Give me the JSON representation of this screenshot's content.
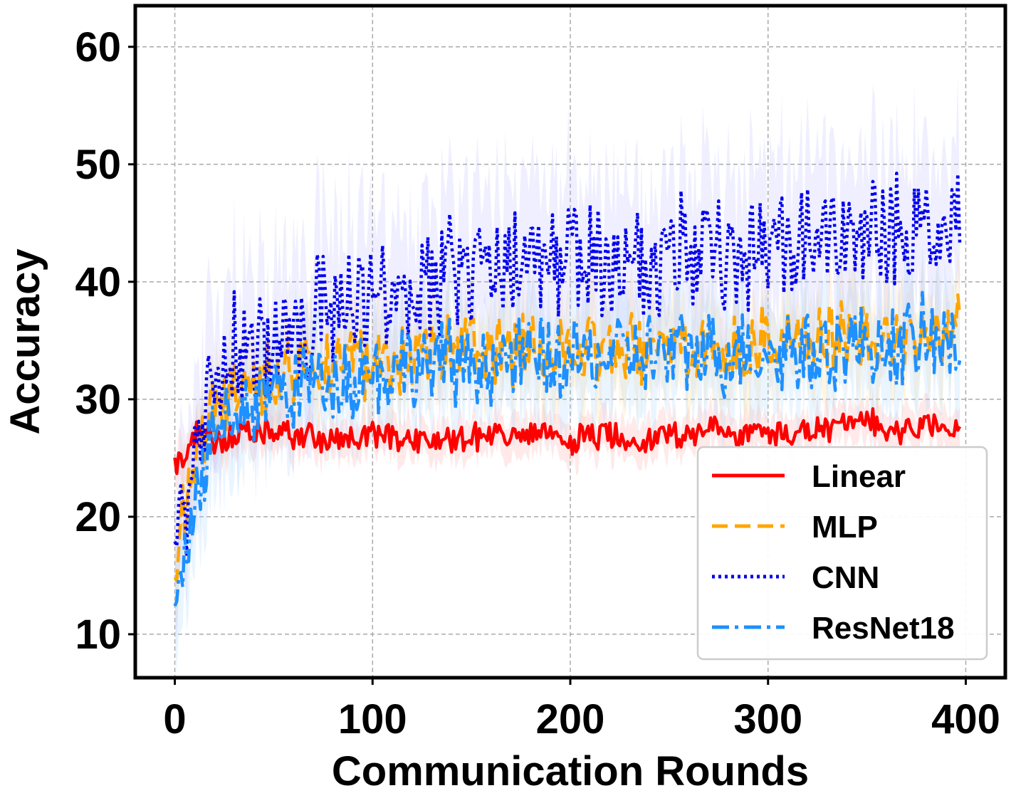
{
  "chart_data": {
    "type": "line",
    "title": "",
    "xlabel": "Communication Rounds",
    "ylabel": "Accuracy",
    "xlim": [
      -20,
      420
    ],
    "ylim": [
      6.3,
      63.5
    ],
    "xticks": [
      0,
      100,
      200,
      300,
      400
    ],
    "yticks": [
      10,
      20,
      30,
      40,
      50,
      60
    ],
    "grid": true,
    "legend_position": "lower-right",
    "series": [
      {
        "name": "Linear",
        "color": "#ff0000",
        "style": "solid",
        "band_color": "#ff9999",
        "x": [
          0,
          5,
          10,
          20,
          30,
          40,
          50,
          60,
          70,
          80,
          90,
          100,
          110,
          120,
          130,
          140,
          150,
          160,
          170,
          180,
          190,
          200,
          210,
          220,
          230,
          240,
          250,
          260,
          270,
          280,
          290,
          300,
          310,
          320,
          330,
          340,
          350,
          360,
          370,
          380,
          390,
          397
        ],
        "y": [
          24.5,
          25.0,
          27.0,
          26.5,
          27.0,
          26.8,
          27.2,
          27.0,
          26.8,
          26.5,
          26.4,
          27.0,
          26.8,
          26.7,
          26.5,
          26.6,
          26.9,
          27.0,
          26.8,
          26.9,
          26.7,
          26.6,
          26.8,
          27.0,
          26.7,
          26.6,
          27.0,
          27.2,
          27.4,
          27.0,
          27.1,
          27.2,
          27.0,
          27.3,
          27.5,
          27.8,
          28.0,
          27.5,
          27.6,
          27.8,
          28.0,
          27.5
        ]
      },
      {
        "name": "MLP",
        "color": "#ffa500",
        "style": "dashed",
        "band_color": "#ffd280",
        "x": [
          0,
          5,
          10,
          20,
          30,
          40,
          50,
          60,
          70,
          80,
          90,
          100,
          110,
          120,
          130,
          140,
          150,
          160,
          170,
          180,
          190,
          200,
          210,
          220,
          230,
          240,
          250,
          260,
          270,
          280,
          290,
          300,
          310,
          320,
          330,
          340,
          350,
          360,
          370,
          380,
          390,
          397
        ],
        "y": [
          17.0,
          21.0,
          25.0,
          29.0,
          31.0,
          31.5,
          32.0,
          32.5,
          33.0,
          33.2,
          33.0,
          33.5,
          33.4,
          33.8,
          33.6,
          34.0,
          34.2,
          34.5,
          34.0,
          34.3,
          34.2,
          34.0,
          34.3,
          34.5,
          34.2,
          34.4,
          34.6,
          34.8,
          34.5,
          34.7,
          34.6,
          34.8,
          35.0,
          34.8,
          35.0,
          34.9,
          35.2,
          35.0,
          34.8,
          35.3,
          35.0,
          36.0
        ]
      },
      {
        "name": "CNN",
        "color": "#0000ee",
        "style": "dotted",
        "band_color": "#b4b4ff",
        "x": [
          0,
          5,
          10,
          20,
          30,
          40,
          50,
          60,
          70,
          80,
          90,
          100,
          110,
          120,
          130,
          140,
          150,
          160,
          170,
          180,
          190,
          200,
          210,
          220,
          230,
          240,
          250,
          260,
          270,
          280,
          290,
          300,
          310,
          320,
          330,
          340,
          350,
          360,
          370,
          380,
          390,
          397
        ],
        "y": [
          18.0,
          19.0,
          26.0,
          32.0,
          34.0,
          34.5,
          35.0,
          35.5,
          37.0,
          38.0,
          38.5,
          39.0,
          39.5,
          40.0,
          40.0,
          40.5,
          40.8,
          41.0,
          41.0,
          41.2,
          41.0,
          41.5,
          41.8,
          42.0,
          42.0,
          42.2,
          42.5,
          42.8,
          43.0,
          43.0,
          43.2,
          43.5,
          43.4,
          43.6,
          43.8,
          44.0,
          44.0,
          44.2,
          44.5,
          44.5,
          45.0,
          47.0
        ]
      },
      {
        "name": "ResNet18",
        "color": "#1e90ff",
        "style": "dashdot",
        "band_color": "#a0d0ff",
        "x": [
          0,
          5,
          10,
          20,
          30,
          40,
          50,
          60,
          70,
          80,
          90,
          100,
          110,
          120,
          130,
          140,
          150,
          160,
          170,
          180,
          190,
          200,
          210,
          220,
          230,
          240,
          250,
          260,
          270,
          280,
          290,
          300,
          310,
          320,
          330,
          340,
          350,
          360,
          370,
          380,
          390,
          397
        ],
        "y": [
          12.0,
          17.0,
          21.0,
          27.0,
          29.0,
          30.0,
          30.5,
          31.0,
          31.5,
          32.0,
          32.0,
          32.5,
          32.5,
          32.8,
          33.0,
          33.0,
          33.2,
          33.0,
          33.3,
          33.4,
          33.2,
          33.5,
          33.6,
          33.5,
          33.8,
          33.7,
          33.8,
          34.0,
          33.9,
          34.0,
          34.2,
          34.0,
          34.3,
          34.2,
          34.5,
          34.3,
          34.6,
          34.5,
          34.8,
          35.0,
          35.0,
          33.5
        ]
      }
    ]
  }
}
